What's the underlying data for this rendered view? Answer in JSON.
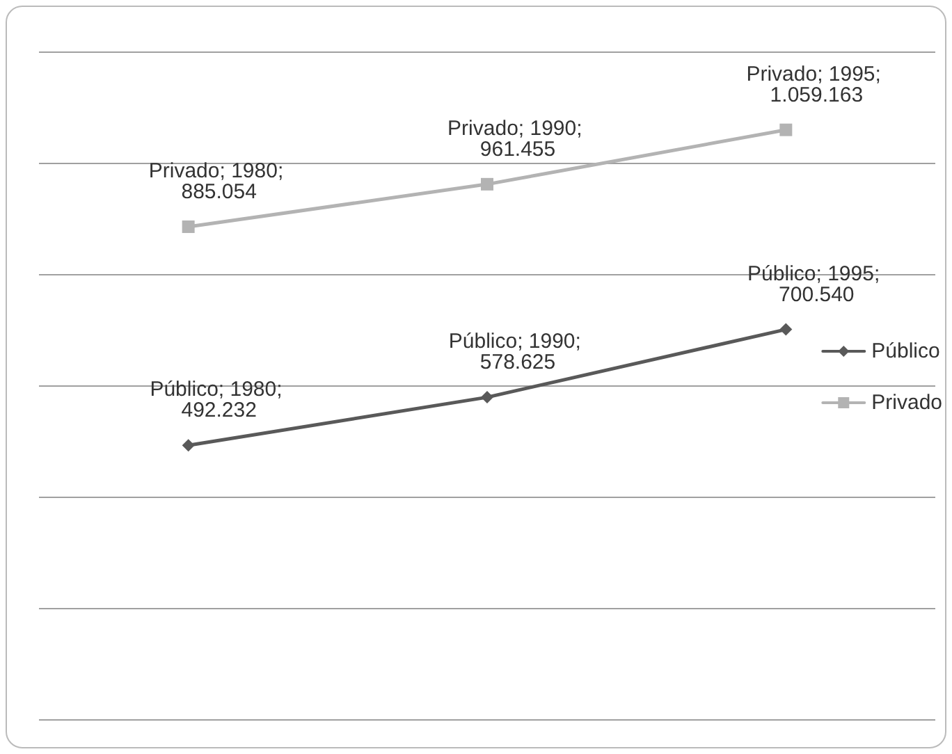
{
  "chart_data": {
    "type": "line",
    "categories": [
      null,
      null,
      null
    ],
    "series": [
      {
        "name": "Público",
        "color": "#595959",
        "marker": "diamond",
        "values": [
          492232,
          578625,
          700540
        ],
        "value_labels": [
          "Público; 1980; 492.232",
          "Público; 1990; 578.625",
          "Público; 1995; 700.540"
        ]
      },
      {
        "name": "Privado",
        "color": "#b3b3b3",
        "marker": "square",
        "values": [
          885054,
          961455,
          1059163
        ],
        "value_labels": [
          "Privado; 1980; 885.054",
          "Privado; 1990; 961.455",
          "Privado; 1995; 1.059.163"
        ]
      }
    ],
    "ylim": [
      0,
      1200000
    ],
    "yticks": [
      0,
      200000,
      400000,
      600000,
      800000,
      1000000,
      1200000
    ],
    "grid": "y",
    "legend": "right",
    "tick_labels": false,
    "line_style": "solid"
  }
}
